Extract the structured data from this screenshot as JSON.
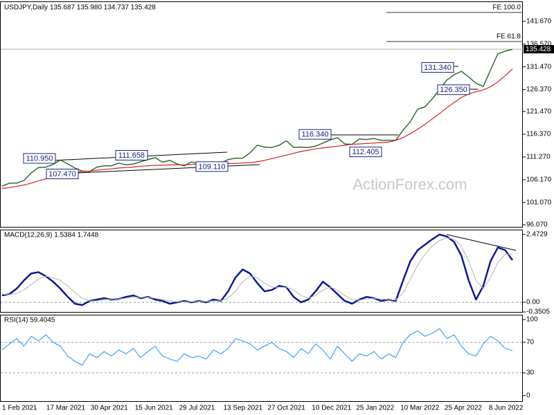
{
  "chart_data": [
    {
      "type": "line",
      "title": "USDJPY,Daily  135.687 135.980 134.737 135.428",
      "watermark": "ActionForex.com",
      "ylim": [
        95.6,
        146.0
      ],
      "yticks": [
        {
          "value": 96.07,
          "label": "96.070"
        },
        {
          "value": 101.07,
          "label": "101.070"
        },
        {
          "value": 106.17,
          "label": "106.170"
        },
        {
          "value": 111.27,
          "label": "111.270"
        },
        {
          "value": 116.37,
          "label": "116.370"
        },
        {
          "value": 121.47,
          "label": "121.470"
        },
        {
          "value": 126.37,
          "label": "126.370"
        },
        {
          "value": 131.47,
          "label": "131.470"
        },
        {
          "value": 136.57,
          "label": "136.570"
        },
        {
          "value": 141.67,
          "label": "141.670"
        }
      ],
      "grid": false,
      "last_price": 135.428,
      "levels": [
        {
          "label": "FE 100.0",
          "value": 143.67
        },
        {
          "label": "FE 61.8",
          "value": 137.16
        }
      ],
      "annotations": [
        {
          "label": "110.950",
          "value": 110.95
        },
        {
          "label": "107.470",
          "value": 107.47
        },
        {
          "label": "111.658",
          "value": 111.658
        },
        {
          "label": "109.110",
          "value": 109.11
        },
        {
          "label": "116.340",
          "value": 116.34
        },
        {
          "label": "112.405",
          "value": 112.405
        },
        {
          "label": "131.340",
          "value": 131.34
        },
        {
          "label": "126.350",
          "value": 126.35
        }
      ],
      "series": [
        {
          "color": "#2f6b33",
          "line_width": 1.5,
          "values": [
            104.7,
            105.4,
            105.4,
            106.0,
            107.7,
            108.9,
            109.0,
            109.6,
            110.6,
            109.7,
            108.8,
            108.1,
            108.0,
            109.0,
            109.3,
            109.3,
            109.9,
            109.5,
            109.7,
            110.2,
            110.7,
            111.1,
            110.1,
            110.5,
            109.7,
            109.3,
            110.2,
            109.6,
            109.8,
            109.9,
            109.9,
            110.7,
            111.0,
            111.0,
            112.2,
            113.9,
            113.5,
            113.4,
            113.9,
            114.9,
            113.4,
            113.5,
            113.4,
            113.7,
            114.4,
            115.1,
            115.6,
            114.2,
            114.1,
            115.3,
            115.2,
            115.4,
            115.0,
            115.0,
            115.0,
            117.3,
            119.2,
            122.0,
            122.5,
            124.3,
            126.4,
            128.5,
            129.7,
            130.5,
            129.2,
            127.8,
            127.1,
            130.8,
            134.4,
            135.0,
            135.4
          ]
        },
        {
          "color": "#d62020",
          "line_width": 1.2,
          "values": [
            104.2,
            104.4,
            104.7,
            105.0,
            105.4,
            105.9,
            106.4,
            106.9,
            107.3,
            107.6,
            107.8,
            108.0,
            108.1,
            108.3,
            108.5,
            108.6,
            108.8,
            108.9,
            109.0,
            109.2,
            109.3,
            109.4,
            109.4,
            109.5,
            109.5,
            109.5,
            109.6,
            109.6,
            109.6,
            109.7,
            109.7,
            109.8,
            109.8,
            109.9,
            110.0,
            110.2,
            110.5,
            110.9,
            111.3,
            111.7,
            112.1,
            112.5,
            112.8,
            113.1,
            113.3,
            113.5,
            113.7,
            113.9,
            114.1,
            114.2,
            114.3,
            114.4,
            114.5,
            114.6,
            115.0,
            115.6,
            116.5,
            117.5,
            118.6,
            119.8,
            121.0,
            122.3,
            123.5,
            124.6,
            125.4,
            125.9,
            126.3,
            127.0,
            128.1,
            129.5,
            131.0
          ]
        }
      ]
    },
    {
      "type": "line",
      "title": "MACD(12,26,9) 1.5384 1.7448",
      "ylim": [
        -0.3505,
        2.4729
      ],
      "yticks": [
        -0.3505,
        {
          "value": 0,
          "label": "0.00"
        },
        2.4729
      ],
      "grid": true,
      "series": [
        {
          "color": "#0a1a8c",
          "line_width": 2.5,
          "values": [
            0.25,
            0.3,
            0.5,
            0.8,
            1.05,
            1.1,
            0.95,
            0.75,
            0.5,
            0.2,
            -0.05,
            -0.1,
            0.05,
            0.1,
            0.15,
            0.1,
            0.12,
            0.2,
            0.25,
            0.15,
            0.2,
            0.1,
            0.05,
            -0.05,
            0.0,
            0.05,
            0.0,
            0.05,
            0.0,
            0.1,
            0.05,
            0.4,
            0.9,
            1.2,
            1.05,
            0.7,
            0.4,
            0.45,
            0.6,
            0.55,
            0.2,
            0.0,
            0.1,
            0.4,
            0.75,
            0.55,
            0.3,
            0.05,
            -0.05,
            0.1,
            0.2,
            0.15,
            0.05,
            0.1,
            0.05,
            0.8,
            1.5,
            1.9,
            2.1,
            2.3,
            2.47,
            2.4,
            2.2,
            1.7,
            0.8,
            0.1,
            0.6,
            1.5,
            2.0,
            1.9,
            1.5384
          ]
        },
        {
          "color": "#b4b4b4",
          "line_width": 1,
          "values": [
            0.3,
            0.28,
            0.32,
            0.45,
            0.65,
            0.85,
            0.95,
            0.9,
            0.8,
            0.6,
            0.35,
            0.15,
            0.05,
            0.05,
            0.1,
            0.12,
            0.12,
            0.15,
            0.2,
            0.18,
            0.18,
            0.15,
            0.1,
            0.05,
            0.02,
            0.02,
            0.02,
            0.03,
            0.03,
            0.05,
            0.06,
            0.15,
            0.4,
            0.75,
            0.95,
            0.9,
            0.7,
            0.55,
            0.55,
            0.55,
            0.45,
            0.25,
            0.15,
            0.25,
            0.45,
            0.55,
            0.45,
            0.25,
            0.1,
            0.08,
            0.12,
            0.15,
            0.12,
            0.1,
            0.08,
            0.35,
            0.85,
            1.35,
            1.75,
            2.05,
            2.25,
            2.35,
            2.3,
            2.05,
            1.5,
            0.8,
            0.5,
            0.9,
            1.45,
            1.75,
            1.7448
          ]
        }
      ]
    },
    {
      "type": "line",
      "title": "RSI(14) 59.4045",
      "ylim": [
        0,
        100
      ],
      "yticks": [
        0,
        30,
        70,
        100
      ],
      "grid": true,
      "x_tick_labels": [
        "1 Feb 2021",
        "17 Mar 2021",
        "30 Apr 2021",
        "15 Jun 2021",
        "29 Jul 2021",
        "13 Sep 2021",
        "27 Oct 2021",
        "10 Dec 2021",
        "25 Jan 2022",
        "10 Mar 2022",
        "25 Apr 2022",
        "8 Jun 2022"
      ],
      "series": [
        {
          "color": "#1e90ff",
          "line_width": 1,
          "values": [
            60,
            68,
            75,
            65,
            78,
            72,
            80,
            70,
            65,
            52,
            45,
            40,
            55,
            50,
            58,
            52,
            60,
            55,
            62,
            50,
            58,
            65,
            52,
            48,
            45,
            55,
            50,
            52,
            48,
            60,
            55,
            62,
            75,
            72,
            68,
            60,
            65,
            70,
            62,
            58,
            50,
            62,
            55,
            68,
            60,
            48,
            65,
            55,
            45,
            55,
            52,
            58,
            48,
            55,
            50,
            70,
            80,
            85,
            78,
            82,
            88,
            75,
            80,
            65,
            55,
            52,
            68,
            78,
            72,
            62,
            59.4045
          ]
        }
      ]
    }
  ]
}
